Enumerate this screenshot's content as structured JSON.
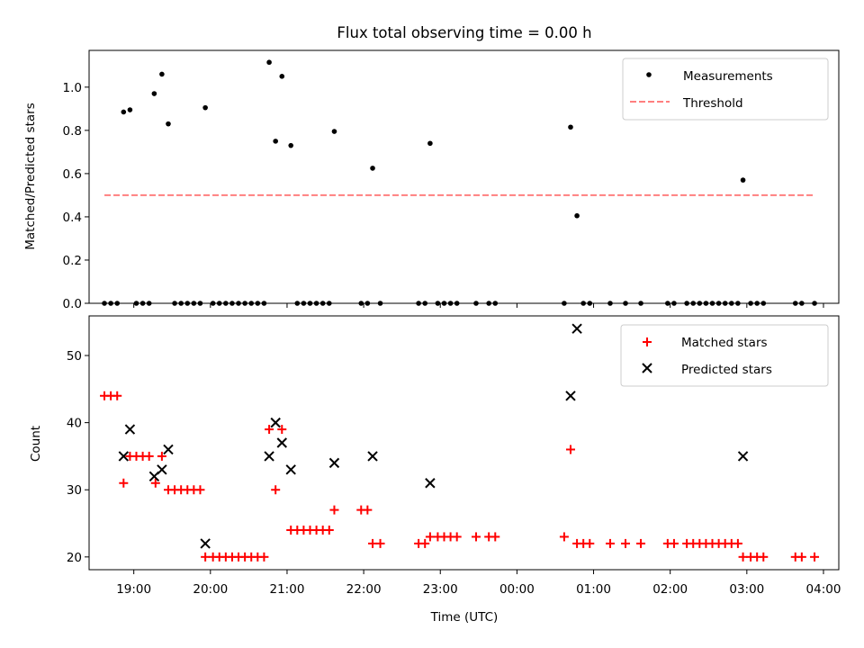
{
  "chart_data": [
    {
      "type": "scatter",
      "title": "Flux total observing time = 0.00 h",
      "xlabel": "",
      "ylabel": "Matched/Predicted stars",
      "ylim": [
        0,
        1.17
      ],
      "xlim": [
        "18:25",
        "04:12"
      ],
      "y_ticks": [
        "0.0",
        "0.2",
        "0.4",
        "0.6",
        "0.8",
        "1.0"
      ],
      "legend": {
        "placement": "top-right",
        "entries": [
          "Measurements",
          "Threshold"
        ]
      },
      "series": [
        {
          "name": "Measurements",
          "marker": "dot",
          "color": "#000000",
          "points": [
            [
              "18:52",
              0.885
            ],
            [
              "18:57",
              0.895
            ],
            [
              "19:16",
              0.97
            ],
            [
              "19:22",
              1.06
            ],
            [
              "19:27",
              0.83
            ],
            [
              "19:56",
              0.905
            ],
            [
              "20:46",
              1.115
            ],
            [
              "20:51",
              0.75
            ],
            [
              "20:56",
              1.05
            ],
            [
              "21:03",
              0.73
            ],
            [
              "21:37",
              0.795
            ],
            [
              "22:07",
              0.625
            ],
            [
              "22:52",
              0.74
            ],
            [
              "00:42",
              0.815
            ],
            [
              "00:47",
              0.405
            ],
            [
              "02:57",
              0.57
            ],
            [
              "18:37",
              0
            ],
            [
              "18:42",
              0
            ],
            [
              "18:47",
              0
            ],
            [
              "19:02",
              0
            ],
            [
              "19:07",
              0
            ],
            [
              "19:12",
              0
            ],
            [
              "19:32",
              0
            ],
            [
              "19:37",
              0
            ],
            [
              "19:42",
              0
            ],
            [
              "19:47",
              0
            ],
            [
              "19:52",
              0
            ],
            [
              "20:02",
              0
            ],
            [
              "20:07",
              0
            ],
            [
              "20:12",
              0
            ],
            [
              "20:17",
              0
            ],
            [
              "20:22",
              0
            ],
            [
              "20:27",
              0
            ],
            [
              "20:32",
              0
            ],
            [
              "20:37",
              0
            ],
            [
              "20:42",
              0
            ],
            [
              "21:08",
              0
            ],
            [
              "21:13",
              0
            ],
            [
              "21:18",
              0
            ],
            [
              "21:23",
              0
            ],
            [
              "21:28",
              0
            ],
            [
              "21:33",
              0
            ],
            [
              "21:58",
              0
            ],
            [
              "22:03",
              0
            ],
            [
              "22:13",
              0
            ],
            [
              "22:43",
              0
            ],
            [
              "22:48",
              0
            ],
            [
              "22:58",
              0
            ],
            [
              "23:03",
              0
            ],
            [
              "23:08",
              0
            ],
            [
              "23:13",
              0
            ],
            [
              "23:28",
              0
            ],
            [
              "23:38",
              0
            ],
            [
              "23:43",
              0
            ],
            [
              "00:37",
              0
            ],
            [
              "00:52",
              0
            ],
            [
              "00:57",
              0
            ],
            [
              "01:13",
              0
            ],
            [
              "01:25",
              0
            ],
            [
              "01:37",
              0
            ],
            [
              "01:58",
              0
            ],
            [
              "02:03",
              0
            ],
            [
              "02:13",
              0
            ],
            [
              "02:18",
              0
            ],
            [
              "02:23",
              0
            ],
            [
              "02:28",
              0
            ],
            [
              "02:33",
              0
            ],
            [
              "02:38",
              0
            ],
            [
              "02:43",
              0
            ],
            [
              "02:48",
              0
            ],
            [
              "02:53",
              0
            ],
            [
              "03:03",
              0
            ],
            [
              "03:08",
              0
            ],
            [
              "03:13",
              0
            ],
            [
              "03:38",
              0
            ],
            [
              "03:43",
              0
            ],
            [
              "03:53",
              0
            ]
          ]
        },
        {
          "name": "Threshold",
          "line": "dashed",
          "color": "#ff7f7f",
          "points": [
            [
              "18:37",
              0.5
            ],
            [
              "03:53",
              0.5
            ]
          ]
        }
      ]
    },
    {
      "type": "scatter",
      "title": "",
      "xlabel": "Time (UTC)",
      "ylabel": "Count",
      "ylim": [
        18.1,
        55.9
      ],
      "xlim": [
        "18:25",
        "04:12"
      ],
      "y_ticks": [
        "20",
        "30",
        "40",
        "50"
      ],
      "x_ticks": [
        "19:00",
        "20:00",
        "21:00",
        "22:00",
        "23:00",
        "00:00",
        "01:00",
        "02:00",
        "03:00",
        "04:00"
      ],
      "legend": {
        "placement": "top-right",
        "entries": [
          "Matched stars",
          "Predicted stars"
        ]
      },
      "series": [
        {
          "name": "Matched stars",
          "marker": "plus",
          "color": "#ff0000",
          "points": [
            [
              "18:37",
              44
            ],
            [
              "18:42",
              44
            ],
            [
              "18:47",
              44
            ],
            [
              "18:52",
              31
            ],
            [
              "18:57",
              35
            ],
            [
              "19:02",
              35
            ],
            [
              "19:07",
              35
            ],
            [
              "19:12",
              35
            ],
            [
              "19:17",
              31
            ],
            [
              "19:22",
              35
            ],
            [
              "19:27",
              30
            ],
            [
              "19:32",
              30
            ],
            [
              "19:37",
              30
            ],
            [
              "19:42",
              30
            ],
            [
              "19:47",
              30
            ],
            [
              "19:52",
              30
            ],
            [
              "19:56",
              20
            ],
            [
              "20:02",
              20
            ],
            [
              "20:07",
              20
            ],
            [
              "20:12",
              20
            ],
            [
              "20:17",
              20
            ],
            [
              "20:22",
              20
            ],
            [
              "20:27",
              20
            ],
            [
              "20:32",
              20
            ],
            [
              "20:37",
              20
            ],
            [
              "20:42",
              20
            ],
            [
              "20:46",
              39
            ],
            [
              "20:51",
              30
            ],
            [
              "20:56",
              39
            ],
            [
              "21:03",
              24
            ],
            [
              "21:08",
              24
            ],
            [
              "21:13",
              24
            ],
            [
              "21:18",
              24
            ],
            [
              "21:23",
              24
            ],
            [
              "21:28",
              24
            ],
            [
              "21:33",
              24
            ],
            [
              "21:37",
              27
            ],
            [
              "21:58",
              27
            ],
            [
              "22:03",
              27
            ],
            [
              "22:07",
              22
            ],
            [
              "22:13",
              22
            ],
            [
              "22:43",
              22
            ],
            [
              "22:48",
              22
            ],
            [
              "22:52",
              23
            ],
            [
              "22:58",
              23
            ],
            [
              "23:03",
              23
            ],
            [
              "23:08",
              23
            ],
            [
              "23:13",
              23
            ],
            [
              "23:28",
              23
            ],
            [
              "23:38",
              23
            ],
            [
              "23:43",
              23
            ],
            [
              "00:37",
              23
            ],
            [
              "00:42",
              36
            ],
            [
              "00:47",
              22
            ],
            [
              "00:52",
              22
            ],
            [
              "00:57",
              22
            ],
            [
              "01:13",
              22
            ],
            [
              "01:25",
              22
            ],
            [
              "01:37",
              22
            ],
            [
              "01:58",
              22
            ],
            [
              "02:03",
              22
            ],
            [
              "02:13",
              22
            ],
            [
              "02:18",
              22
            ],
            [
              "02:23",
              22
            ],
            [
              "02:28",
              22
            ],
            [
              "02:33",
              22
            ],
            [
              "02:38",
              22
            ],
            [
              "02:43",
              22
            ],
            [
              "02:48",
              22
            ],
            [
              "02:53",
              22
            ],
            [
              "02:57",
              20
            ],
            [
              "03:03",
              20
            ],
            [
              "03:08",
              20
            ],
            [
              "03:13",
              20
            ],
            [
              "03:38",
              20
            ],
            [
              "03:43",
              20
            ],
            [
              "03:53",
              20
            ]
          ]
        },
        {
          "name": "Predicted stars",
          "marker": "x",
          "color": "#000000",
          "points": [
            [
              "18:52",
              35
            ],
            [
              "18:57",
              39
            ],
            [
              "19:16",
              32
            ],
            [
              "19:22",
              33
            ],
            [
              "19:27",
              36
            ],
            [
              "19:56",
              22
            ],
            [
              "20:46",
              35
            ],
            [
              "20:51",
              40
            ],
            [
              "20:56",
              37
            ],
            [
              "21:03",
              33
            ],
            [
              "21:37",
              34
            ],
            [
              "22:07",
              35
            ],
            [
              "22:52",
              31
            ],
            [
              "00:42",
              44
            ],
            [
              "00:47",
              54
            ],
            [
              "02:57",
              35
            ]
          ]
        }
      ]
    }
  ]
}
